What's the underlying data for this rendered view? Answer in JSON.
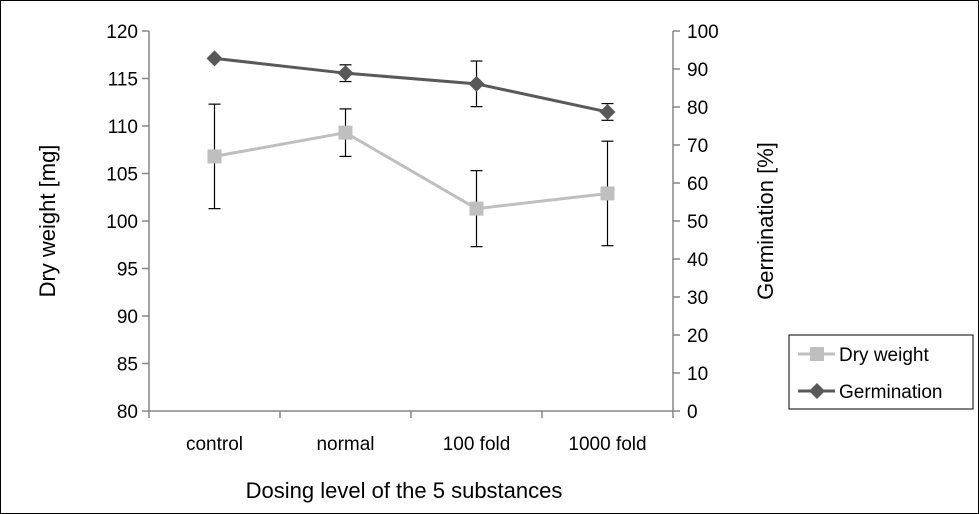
{
  "chart_data": {
    "type": "line",
    "title": "",
    "categories": [
      "control",
      "normal",
      "100 fold",
      "1000 fold"
    ],
    "xlabel": "Dosing level of the 5 substances",
    "ylabel": "Dry weight [mg]",
    "ylabel_right": "Germination [%]",
    "ylim": [
      80,
      120
    ],
    "yticks": [
      80,
      85,
      90,
      95,
      100,
      105,
      110,
      115,
      120
    ],
    "ylim_right": [
      0,
      100
    ],
    "yticks_right": [
      0,
      10,
      20,
      30,
      40,
      50,
      60,
      70,
      80,
      90,
      100
    ],
    "grid": false,
    "legend_position": "right",
    "series": [
      {
        "name": "Dry weight",
        "axis": "left",
        "marker": "square",
        "color": "#bfbfbf",
        "values": [
          106.8,
          109.3,
          101.3,
          102.9
        ],
        "error": [
          5.5,
          2.5,
          4.0,
          5.5
        ]
      },
      {
        "name": "Germination",
        "axis": "right",
        "marker": "diamond",
        "color": "#595959",
        "values": [
          92.8,
          88.9,
          86.1,
          78.7
        ],
        "error": [
          0,
          2.2,
          6.0,
          2.2
        ]
      }
    ]
  }
}
